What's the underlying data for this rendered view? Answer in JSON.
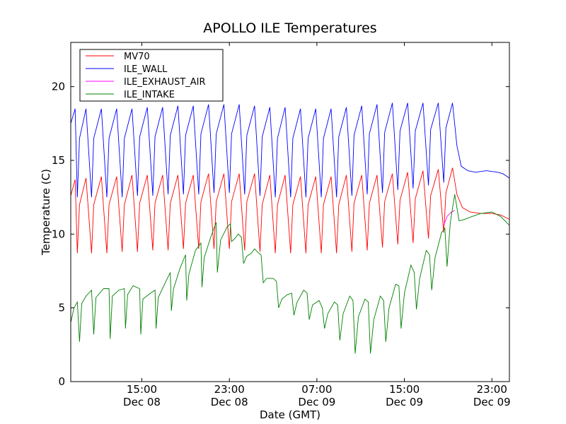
{
  "chart_data": {
    "type": "line",
    "title": "APOLLO ILE Temperatures",
    "xlabel": "Date (GMT)",
    "ylabel": "Temperature (C)",
    "x_domain_hours": [
      8.5,
      48.6
    ],
    "ylim": [
      0,
      23
    ],
    "y_ticks": [
      0,
      5,
      10,
      15,
      20
    ],
    "x_ticks": [
      {
        "hour": 15,
        "line1": "15:00",
        "line2": "Dec 08"
      },
      {
        "hour": 23,
        "line1": "23:00",
        "line2": "Dec 08"
      },
      {
        "hour": 31,
        "line1": "07:00",
        "line2": "Dec 09"
      },
      {
        "hour": 39,
        "line1": "15:00",
        "line2": "Dec 09"
      },
      {
        "hour": 47,
        "line1": "23:00",
        "line2": "Dec 09"
      }
    ],
    "grid": false,
    "legend_position": "top-left",
    "series": [
      {
        "name": "MV70",
        "color": "#ff0000",
        "points": [
          [
            8.5,
            12.6
          ],
          [
            8.9,
            13.7
          ],
          [
            9.1,
            8.7
          ],
          [
            9.3,
            12.0
          ],
          [
            9.9,
            13.8
          ],
          [
            10.4,
            8.7
          ],
          [
            10.6,
            12.0
          ],
          [
            11.3,
            13.9
          ],
          [
            11.8,
            8.7
          ],
          [
            12.0,
            12.0
          ],
          [
            12.7,
            13.9
          ],
          [
            13.2,
            8.8
          ],
          [
            13.4,
            12.0
          ],
          [
            14.1,
            14.0
          ],
          [
            14.6,
            8.8
          ],
          [
            14.8,
            12.1
          ],
          [
            15.5,
            14.0
          ],
          [
            16.0,
            8.9
          ],
          [
            16.2,
            12.1
          ],
          [
            16.9,
            14.0
          ],
          [
            17.4,
            8.9
          ],
          [
            17.6,
            12.1
          ],
          [
            18.3,
            14.0
          ],
          [
            18.8,
            9.0
          ],
          [
            19.0,
            12.1
          ],
          [
            19.7,
            14.0
          ],
          [
            20.2,
            9.0
          ],
          [
            20.4,
            12.2
          ],
          [
            21.1,
            14.1
          ],
          [
            21.6,
            9.0
          ],
          [
            21.8,
            12.2
          ],
          [
            22.5,
            14.1
          ],
          [
            23.0,
            9.0
          ],
          [
            23.2,
            12.2
          ],
          [
            23.9,
            14.1
          ],
          [
            24.4,
            8.9
          ],
          [
            24.6,
            12.2
          ],
          [
            25.3,
            14.1
          ],
          [
            25.8,
            8.8
          ],
          [
            26.0,
            12.0
          ],
          [
            26.7,
            14.0
          ],
          [
            27.2,
            8.7
          ],
          [
            27.4,
            12.0
          ],
          [
            28.1,
            14.0
          ],
          [
            28.6,
            8.7
          ],
          [
            28.8,
            12.0
          ],
          [
            29.5,
            13.9
          ],
          [
            30.0,
            8.7
          ],
          [
            30.2,
            12.0
          ],
          [
            30.9,
            13.9
          ],
          [
            31.4,
            8.7
          ],
          [
            31.6,
            12.0
          ],
          [
            32.3,
            13.9
          ],
          [
            32.8,
            8.7
          ],
          [
            33.0,
            12.0
          ],
          [
            33.7,
            14.0
          ],
          [
            34.2,
            8.8
          ],
          [
            34.4,
            12.1
          ],
          [
            35.1,
            14.0
          ],
          [
            35.6,
            8.9
          ],
          [
            35.8,
            12.1
          ],
          [
            36.5,
            14.0
          ],
          [
            37.0,
            9.1
          ],
          [
            37.2,
            12.2
          ],
          [
            37.9,
            14.1
          ],
          [
            38.4,
            9.3
          ],
          [
            38.6,
            12.3
          ],
          [
            39.3,
            14.2
          ],
          [
            39.8,
            9.4
          ],
          [
            40.0,
            12.4
          ],
          [
            40.7,
            14.3
          ],
          [
            41.2,
            9.7
          ],
          [
            41.4,
            12.6
          ],
          [
            42.1,
            14.4
          ],
          [
            42.6,
            10.1
          ],
          [
            42.8,
            12.8
          ],
          [
            43.4,
            14.5
          ],
          [
            43.8,
            12.7
          ],
          [
            44.3,
            11.8
          ],
          [
            45.0,
            11.5
          ],
          [
            46.0,
            11.4
          ],
          [
            47.0,
            11.4
          ],
          [
            47.8,
            11.3
          ],
          [
            48.6,
            11.0
          ]
        ]
      },
      {
        "name": "ILE_WALL",
        "color": "#0000ff",
        "points": [
          [
            8.5,
            17.5
          ],
          [
            8.9,
            18.5
          ],
          [
            9.1,
            12.5
          ],
          [
            9.3,
            16.5
          ],
          [
            9.9,
            18.5
          ],
          [
            10.4,
            12.5
          ],
          [
            10.6,
            16.5
          ],
          [
            11.3,
            18.5
          ],
          [
            11.8,
            12.5
          ],
          [
            12.0,
            16.5
          ],
          [
            12.7,
            18.5
          ],
          [
            13.2,
            12.5
          ],
          [
            13.4,
            16.5
          ],
          [
            14.1,
            18.5
          ],
          [
            14.6,
            12.6
          ],
          [
            14.8,
            16.6
          ],
          [
            15.5,
            18.6
          ],
          [
            16.0,
            12.6
          ],
          [
            16.2,
            16.6
          ],
          [
            16.9,
            18.6
          ],
          [
            17.4,
            12.7
          ],
          [
            17.6,
            16.7
          ],
          [
            18.3,
            18.7
          ],
          [
            18.8,
            12.7
          ],
          [
            19.0,
            16.7
          ],
          [
            19.7,
            18.7
          ],
          [
            20.2,
            12.7
          ],
          [
            20.4,
            16.8
          ],
          [
            21.1,
            18.8
          ],
          [
            21.6,
            12.8
          ],
          [
            21.8,
            16.8
          ],
          [
            22.5,
            18.8
          ],
          [
            23.0,
            12.8
          ],
          [
            23.2,
            16.8
          ],
          [
            23.9,
            18.8
          ],
          [
            24.4,
            12.7
          ],
          [
            24.6,
            16.7
          ],
          [
            25.3,
            18.7
          ],
          [
            25.8,
            12.6
          ],
          [
            26.0,
            16.6
          ],
          [
            26.7,
            18.6
          ],
          [
            27.2,
            12.5
          ],
          [
            27.4,
            16.5
          ],
          [
            28.1,
            18.6
          ],
          [
            28.6,
            12.5
          ],
          [
            28.8,
            16.5
          ],
          [
            29.5,
            18.5
          ],
          [
            30.0,
            12.5
          ],
          [
            30.2,
            16.5
          ],
          [
            30.9,
            18.5
          ],
          [
            31.4,
            12.5
          ],
          [
            31.6,
            16.5
          ],
          [
            32.3,
            18.5
          ],
          [
            32.8,
            12.5
          ],
          [
            33.0,
            16.6
          ],
          [
            33.7,
            18.6
          ],
          [
            34.2,
            12.6
          ],
          [
            34.4,
            16.7
          ],
          [
            35.1,
            18.7
          ],
          [
            35.6,
            12.7
          ],
          [
            35.8,
            16.8
          ],
          [
            36.5,
            18.8
          ],
          [
            37.0,
            12.8
          ],
          [
            37.2,
            16.9
          ],
          [
            37.9,
            18.9
          ],
          [
            38.4,
            13.0
          ],
          [
            38.6,
            17.0
          ],
          [
            39.3,
            18.9
          ],
          [
            39.8,
            13.1
          ],
          [
            40.0,
            17.0
          ],
          [
            40.7,
            18.9
          ],
          [
            41.2,
            13.3
          ],
          [
            41.4,
            17.1
          ],
          [
            42.1,
            18.9
          ],
          [
            42.6,
            13.5
          ],
          [
            42.8,
            17.2
          ],
          [
            43.4,
            18.9
          ],
          [
            43.8,
            16.0
          ],
          [
            44.2,
            14.6
          ],
          [
            44.8,
            14.3
          ],
          [
            45.5,
            14.2
          ],
          [
            46.5,
            14.3
          ],
          [
            47.5,
            14.2
          ],
          [
            48.0,
            14.1
          ],
          [
            48.6,
            13.8
          ]
        ]
      },
      {
        "name": "ILE_EXHAUST_AIR",
        "color": "#ff00ff",
        "points": [
          [
            42.6,
            10.6
          ],
          [
            42.9,
            11.2
          ],
          [
            43.3,
            11.5
          ],
          [
            43.6,
            11.6
          ]
        ]
      },
      {
        "name": "ILE_INTAKE",
        "color": "#008000",
        "points": [
          [
            8.5,
            4.0
          ],
          [
            8.8,
            5.0
          ],
          [
            9.1,
            5.4
          ],
          [
            9.3,
            2.7
          ],
          [
            9.5,
            5.3
          ],
          [
            9.9,
            5.8
          ],
          [
            10.4,
            6.2
          ],
          [
            10.6,
            3.2
          ],
          [
            10.8,
            5.7
          ],
          [
            11.5,
            6.3
          ],
          [
            12.0,
            6.3
          ],
          [
            12.1,
            2.9
          ],
          [
            12.3,
            5.8
          ],
          [
            12.9,
            6.2
          ],
          [
            13.4,
            6.3
          ],
          [
            13.5,
            3.6
          ],
          [
            13.7,
            5.9
          ],
          [
            14.2,
            6.5
          ],
          [
            14.8,
            6.3
          ],
          [
            14.9,
            3.2
          ],
          [
            15.1,
            5.6
          ],
          [
            15.8,
            6.0
          ],
          [
            16.2,
            6.2
          ],
          [
            16.3,
            3.6
          ],
          [
            16.5,
            5.7
          ],
          [
            17.2,
            6.8
          ],
          [
            17.6,
            7.4
          ],
          [
            17.7,
            4.8
          ],
          [
            17.9,
            6.3
          ],
          [
            18.5,
            7.7
          ],
          [
            19.0,
            8.6
          ],
          [
            19.1,
            5.5
          ],
          [
            19.3,
            7.3
          ],
          [
            19.9,
            8.9
          ],
          [
            20.4,
            9.4
          ],
          [
            20.5,
            6.4
          ],
          [
            20.7,
            8.4
          ],
          [
            21.3,
            9.8
          ],
          [
            21.8,
            10.8
          ],
          [
            21.9,
            7.4
          ],
          [
            22.2,
            9.6
          ],
          [
            22.8,
            10.5
          ],
          [
            23.1,
            10.7
          ],
          [
            23.2,
            9.5
          ],
          [
            23.5,
            9.7
          ],
          [
            23.8,
            10.0
          ],
          [
            24.1,
            9.8
          ],
          [
            24.3,
            8.0
          ],
          [
            24.6,
            8.5
          ],
          [
            25.0,
            8.7
          ],
          [
            25.3,
            9.0
          ],
          [
            25.7,
            8.7
          ],
          [
            25.9,
            8.6
          ],
          [
            26.1,
            6.7
          ],
          [
            26.4,
            7.0
          ],
          [
            27.0,
            7.0
          ],
          [
            27.3,
            6.8
          ],
          [
            27.5,
            5.0
          ],
          [
            27.8,
            5.6
          ],
          [
            28.3,
            5.9
          ],
          [
            28.7,
            6.0
          ],
          [
            28.9,
            4.5
          ],
          [
            29.2,
            5.4
          ],
          [
            29.8,
            6.2
          ],
          [
            30.1,
            6.0
          ],
          [
            30.3,
            4.2
          ],
          [
            30.6,
            5.2
          ],
          [
            31.2,
            5.5
          ],
          [
            31.5,
            5.0
          ],
          [
            31.7,
            3.6
          ],
          [
            32.0,
            4.6
          ],
          [
            32.6,
            5.4
          ],
          [
            32.9,
            5.2
          ],
          [
            33.1,
            2.8
          ],
          [
            33.4,
            4.6
          ],
          [
            34.0,
            5.8
          ],
          [
            34.3,
            5.5
          ],
          [
            34.5,
            1.9
          ],
          [
            34.8,
            4.4
          ],
          [
            35.4,
            5.6
          ],
          [
            35.7,
            5.4
          ],
          [
            35.9,
            1.9
          ],
          [
            36.2,
            4.2
          ],
          [
            36.8,
            5.8
          ],
          [
            37.1,
            5.5
          ],
          [
            37.3,
            2.7
          ],
          [
            37.6,
            5.0
          ],
          [
            38.2,
            6.6
          ],
          [
            38.5,
            6.5
          ],
          [
            38.7,
            3.6
          ],
          [
            39.0,
            6.0
          ],
          [
            39.6,
            7.9
          ],
          [
            39.9,
            7.4
          ],
          [
            40.1,
            4.9
          ],
          [
            40.4,
            7.0
          ],
          [
            41.0,
            8.9
          ],
          [
            41.3,
            8.6
          ],
          [
            41.5,
            6.2
          ],
          [
            41.8,
            8.4
          ],
          [
            42.4,
            10.1
          ],
          [
            42.7,
            10.4
          ],
          [
            42.9,
            7.8
          ],
          [
            43.2,
            10.8
          ],
          [
            43.6,
            12.7
          ],
          [
            44.0,
            10.9
          ],
          [
            44.5,
            11.0
          ],
          [
            45.2,
            11.2
          ],
          [
            46.0,
            11.4
          ],
          [
            47.0,
            11.5
          ],
          [
            47.8,
            11.2
          ],
          [
            48.6,
            10.6
          ]
        ]
      }
    ]
  }
}
